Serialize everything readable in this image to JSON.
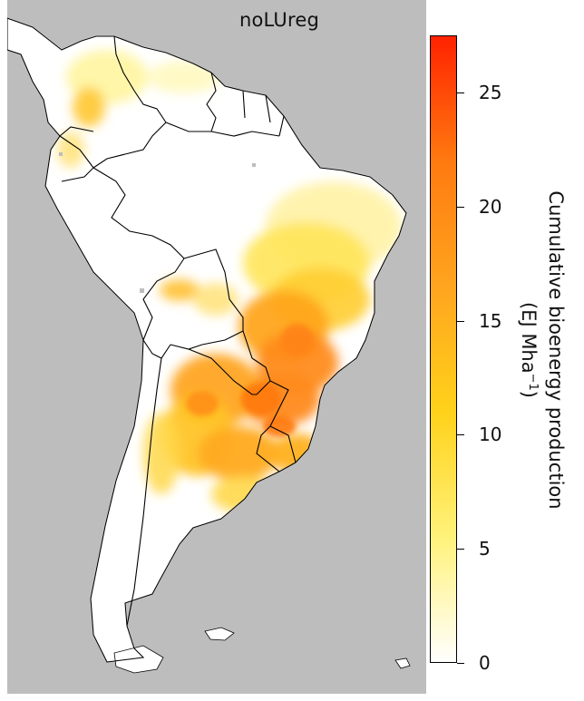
{
  "panel": {
    "title": "noLUreg"
  },
  "legend": {
    "title_line1": "Cumulative bioenergy production",
    "title_line2_base": "(EJ Mha",
    "title_line2_sup": "−1",
    "title_line2_end": ")",
    "ticks": [
      "0",
      "5",
      "10",
      "15",
      "20",
      "25"
    ],
    "tick_values": [
      0,
      5,
      10,
      15,
      20,
      25
    ],
    "range": [
      0,
      27.5
    ],
    "colors": [
      "#ffffff",
      "#fff27a",
      "#ffd21a",
      "#ffa51e",
      "#ff7a10",
      "#ff2200"
    ]
  },
  "map": {
    "ocean_color": "#bdbdbd",
    "land_color": "#ffffff",
    "border_color": "#000000"
  }
}
